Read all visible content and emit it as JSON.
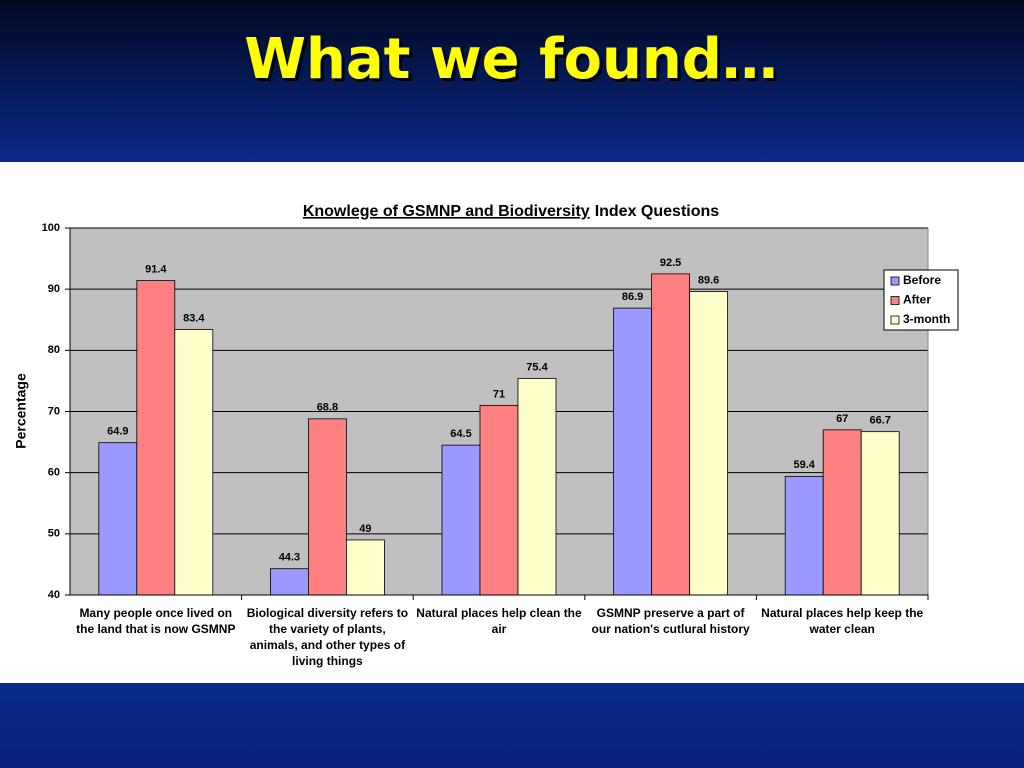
{
  "slide_title": "What we found…",
  "chart_data": {
    "type": "bar",
    "title": {
      "underlined": "Knowlege of GSMNP and Biodiversity",
      "rest": "Index Questions"
    },
    "y_label": "Percentage",
    "categories": [
      "Many people once lived on the land that is now GSMNP",
      "Biological diversity refers to the variety of plants, animals, and other types of living things",
      "Natural places help clean the air",
      "GSMNP preserve a part of our nation's cutlural history",
      "Natural places help keep the water clean"
    ],
    "series": [
      {
        "name": "Before",
        "color": "#9999ff",
        "values": [
          64.9,
          44.3,
          64.5,
          86.9,
          59.4
        ]
      },
      {
        "name": "After",
        "color": "#ff8080",
        "values": [
          91.4,
          68.8,
          71,
          92.5,
          67
        ]
      },
      {
        "name": "3-month",
        "color": "#ffffcc",
        "values": [
          83.4,
          49,
          75.4,
          89.6,
          66.7
        ]
      }
    ],
    "ylim": [
      40,
      100
    ],
    "yticks": [
      40,
      50,
      60,
      70,
      80,
      90,
      100
    ],
    "grid": true,
    "legend": "right"
  }
}
